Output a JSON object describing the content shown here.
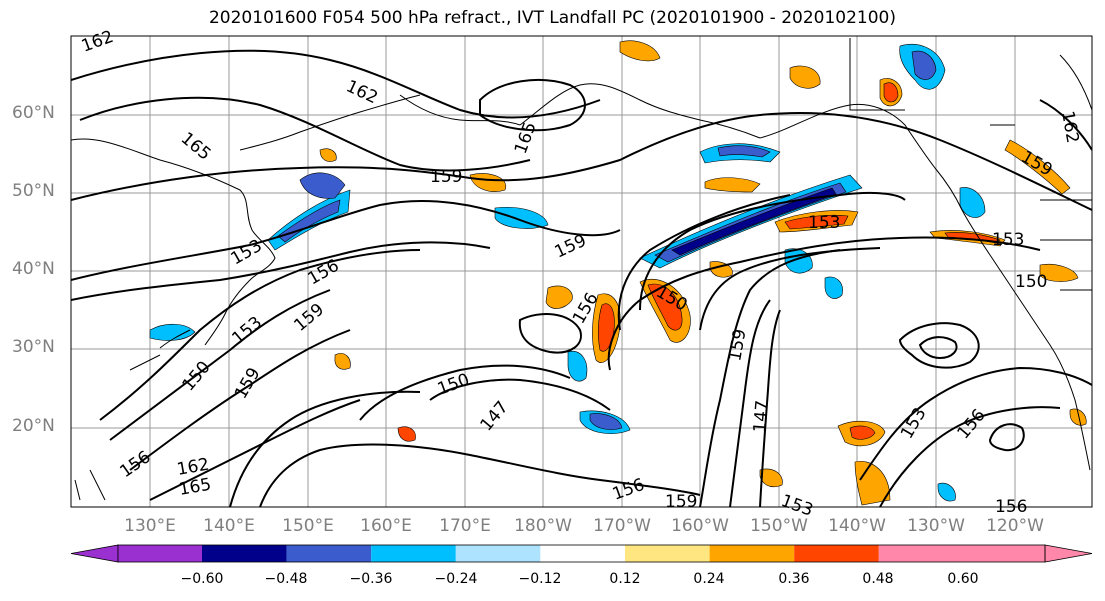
{
  "title": "2020101600 F054 500 hPa refract., IVT Landfall PC (2020101900 - 2020102100)",
  "map": {
    "lat_labels": [
      "60°N",
      "50°N",
      "40°N",
      "30°N",
      "20°N"
    ],
    "lon_labels": [
      "130°E",
      "140°E",
      "150°E",
      "160°E",
      "170°E",
      "180°W",
      "170°W",
      "160°W",
      "150°W",
      "140°W",
      "130°W",
      "120°W"
    ],
    "contour_labels": [
      "162",
      "162",
      "165",
      "165",
      "159",
      "153",
      "156",
      "159",
      "153",
      "159",
      "150",
      "159",
      "150",
      "156",
      "150",
      "147",
      "156",
      "147",
      "159",
      "153",
      "153",
      "150",
      "159",
      "162",
      "153",
      "156",
      "156",
      "162",
      "165",
      "159",
      "153",
      "156"
    ]
  },
  "colorbar": {
    "tick_labels": [
      "−0.60",
      "−0.48",
      "−0.36",
      "−0.24",
      "−0.12",
      "0.12",
      "0.24",
      "0.36",
      "0.48",
      "0.60"
    ],
    "colors": [
      "#9b30d0",
      "#00008b",
      "#3a5ccc",
      "#00bfff",
      "#aee3ff",
      "#ffffff",
      "#ffe680",
      "#ffa500",
      "#ff4500",
      "#b22222",
      "#ff88aa"
    ]
  }
}
